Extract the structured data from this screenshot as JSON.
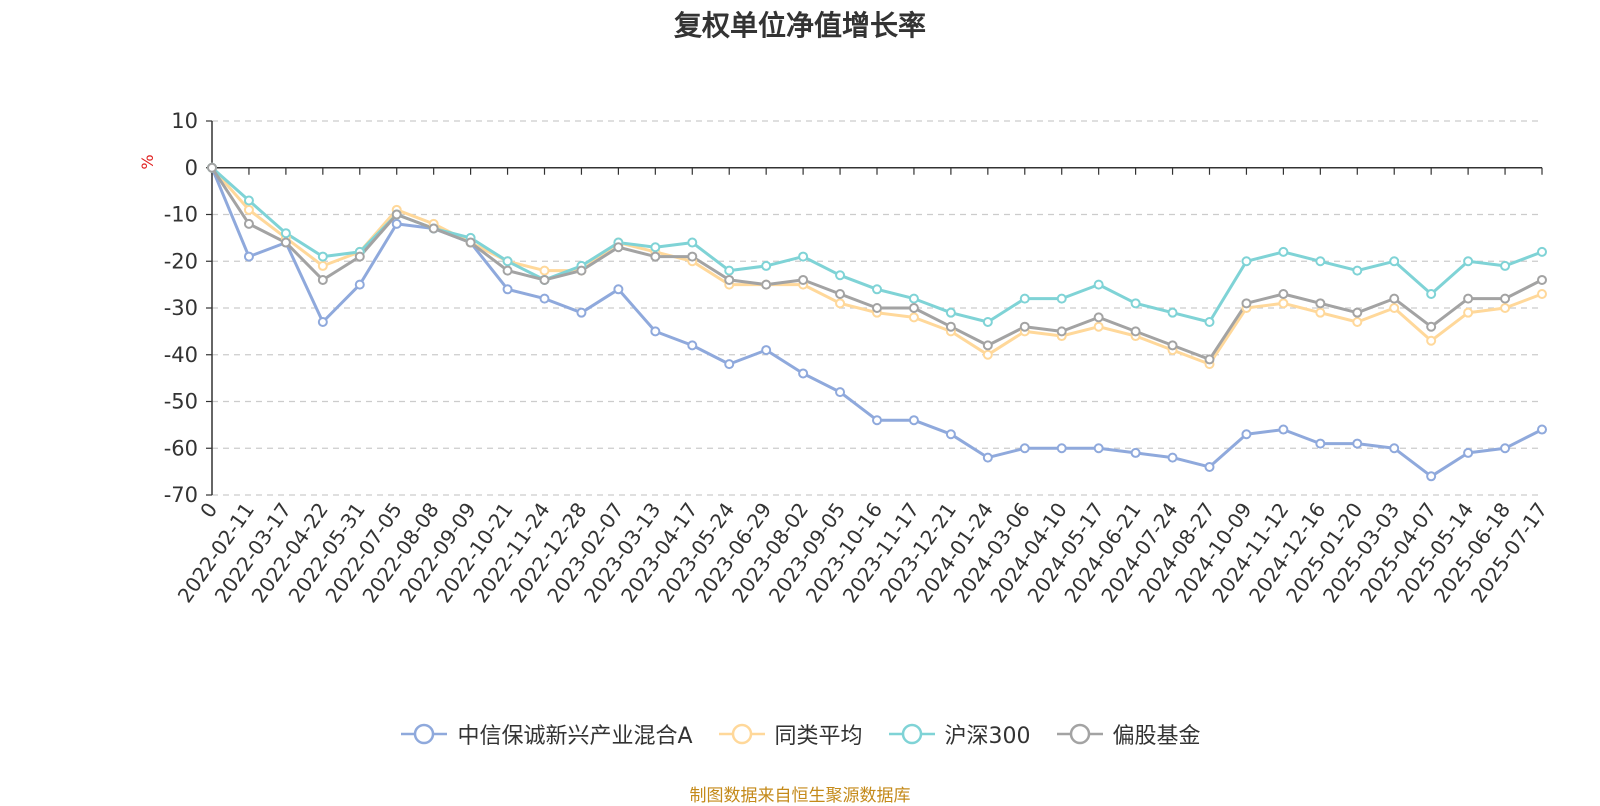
{
  "title": "复权单位净值增长率",
  "source_note": "制图数据来自恒生聚源数据库",
  "chart_data": {
    "type": "line",
    "title": "复权单位净值增长率",
    "ylabel": "%",
    "ylim": [
      -70,
      10
    ],
    "yticks": [
      10,
      0,
      -10,
      -20,
      -30,
      -40,
      -50,
      -60,
      -70
    ],
    "grid": true,
    "legend_position": "bottom",
    "x": [
      "0",
      "2022-02-11",
      "2022-03-17",
      "2022-04-22",
      "2022-05-31",
      "2022-07-05",
      "2022-08-08",
      "2022-09-09",
      "2022-10-21",
      "2022-11-24",
      "2022-12-28",
      "2023-02-07",
      "2023-03-13",
      "2023-04-17",
      "2023-05-24",
      "2023-06-29",
      "2023-08-02",
      "2023-09-05",
      "2023-10-16",
      "2023-11-17",
      "2023-12-21",
      "2024-01-24",
      "2024-03-06",
      "2024-04-10",
      "2024-05-17",
      "2024-06-21",
      "2024-07-24",
      "2024-08-27",
      "2024-10-09",
      "2024-11-12",
      "2024-12-16",
      "2025-01-20",
      "2025-03-03",
      "2025-04-07",
      "2025-05-14",
      "2025-06-18",
      "2025-07-17"
    ],
    "series": [
      {
        "name": "中信保诚新兴产业混合A",
        "color": "#8fa9dc",
        "values": [
          0,
          -19,
          -16,
          -33,
          -25,
          -12,
          -13,
          -16,
          -26,
          -28,
          -31,
          -26,
          -35,
          -38,
          -42,
          -39,
          -44,
          -48,
          -54,
          -54,
          -57,
          -62,
          -60,
          -60,
          -60,
          -61,
          -62,
          -64,
          -57,
          -56,
          -59,
          -59,
          -60,
          -66,
          -61,
          -60,
          -56
        ]
      },
      {
        "name": "同类平均",
        "color": "#ffd89a",
        "values": [
          0,
          -9,
          -15,
          -21,
          -18,
          -9,
          -12,
          -16,
          -20,
          -22,
          -22,
          -16,
          -18,
          -20,
          -25,
          -25,
          -25,
          -29,
          -31,
          -32,
          -35,
          -40,
          -35,
          -36,
          -34,
          -36,
          -39,
          -42,
          -30,
          -29,
          -31,
          -33,
          -30,
          -37,
          -31,
          -30,
          -27
        ]
      },
      {
        "name": "沪深300",
        "color": "#7fd3d6",
        "values": [
          0,
          -7,
          -14,
          -19,
          -18,
          -10,
          -13,
          -15,
          -20,
          -24,
          -21,
          -16,
          -17,
          -16,
          -22,
          -21,
          -19,
          -23,
          -26,
          -28,
          -31,
          -33,
          -28,
          -28,
          -25,
          -29,
          -31,
          -33,
          -20,
          -18,
          -20,
          -22,
          -20,
          -27,
          -20,
          -21,
          -18
        ]
      },
      {
        "name": "偏股基金",
        "color": "#a3a3a3",
        "values": [
          0,
          -12,
          -16,
          -24,
          -19,
          -10,
          -13,
          -16,
          -22,
          -24,
          -22,
          -17,
          -19,
          -19,
          -24,
          -25,
          -24,
          -27,
          -30,
          -30,
          -34,
          -38,
          -34,
          -35,
          -32,
          -35,
          -38,
          -41,
          -29,
          -27,
          -29,
          -31,
          -28,
          -34,
          -28,
          -28,
          -24
        ]
      }
    ]
  }
}
